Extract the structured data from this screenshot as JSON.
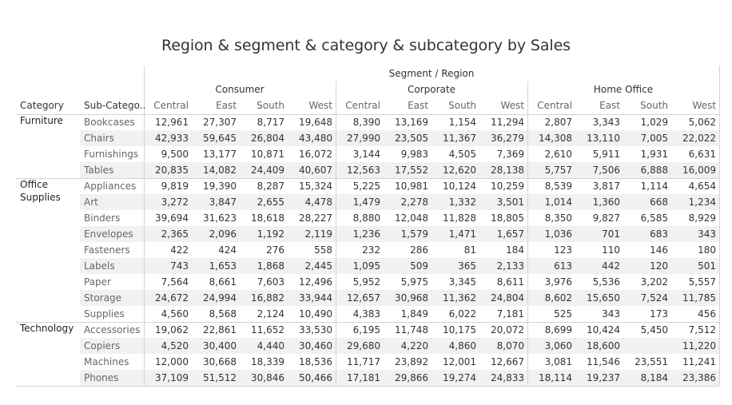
{
  "chart_data": {
    "type": "table",
    "title": "Region & segment & category & subcategory by Sales",
    "column_header_title": "Segment / Region",
    "row_header_labels": [
      "Category",
      "Sub-Catego.."
    ],
    "segments": [
      "Consumer",
      "Corporate",
      "Home Office"
    ],
    "regions": [
      "Central",
      "East",
      "South",
      "West"
    ],
    "categories": [
      {
        "name": "Furniture",
        "subcategories": [
          {
            "name": "Bookcases",
            "values": [
              "12,961",
              "27,307",
              "8,717",
              "19,648",
              "8,390",
              "13,169",
              "1,154",
              "11,294",
              "2,807",
              "3,343",
              "1,029",
              "5,062"
            ]
          },
          {
            "name": "Chairs",
            "values": [
              "42,933",
              "59,645",
              "26,804",
              "43,480",
              "27,990",
              "23,505",
              "11,367",
              "36,279",
              "14,308",
              "13,110",
              "7,005",
              "22,022"
            ]
          },
          {
            "name": "Furnishings",
            "values": [
              "9,500",
              "13,177",
              "10,871",
              "16,072",
              "3,144",
              "9,983",
              "4,505",
              "7,369",
              "2,610",
              "5,911",
              "1,931",
              "6,631"
            ]
          },
          {
            "name": "Tables",
            "values": [
              "20,835",
              "14,082",
              "24,409",
              "40,607",
              "12,563",
              "17,552",
              "12,620",
              "28,138",
              "5,757",
              "7,506",
              "6,888",
              "16,009"
            ]
          }
        ]
      },
      {
        "name": "Office Supplies",
        "subcategories": [
          {
            "name": "Appliances",
            "values": [
              "9,819",
              "19,390",
              "8,287",
              "15,324",
              "5,225",
              "10,981",
              "10,124",
              "10,259",
              "8,539",
              "3,817",
              "1,114",
              "4,654"
            ]
          },
          {
            "name": "Art",
            "values": [
              "3,272",
              "3,847",
              "2,655",
              "4,478",
              "1,479",
              "2,278",
              "1,332",
              "3,501",
              "1,014",
              "1,360",
              "668",
              "1,234"
            ]
          },
          {
            "name": "Binders",
            "values": [
              "39,694",
              "31,623",
              "18,618",
              "28,227",
              "8,880",
              "12,048",
              "11,828",
              "18,805",
              "8,350",
              "9,827",
              "6,585",
              "8,929"
            ]
          },
          {
            "name": "Envelopes",
            "values": [
              "2,365",
              "2,096",
              "1,192",
              "2,119",
              "1,236",
              "1,579",
              "1,471",
              "1,657",
              "1,036",
              "701",
              "683",
              "343"
            ]
          },
          {
            "name": "Fasteners",
            "values": [
              "422",
              "424",
              "276",
              "558",
              "232",
              "286",
              "81",
              "184",
              "123",
              "110",
              "146",
              "180"
            ]
          },
          {
            "name": "Labels",
            "values": [
              "743",
              "1,653",
              "1,868",
              "2,445",
              "1,095",
              "509",
              "365",
              "2,133",
              "613",
              "442",
              "120",
              "501"
            ]
          },
          {
            "name": "Paper",
            "values": [
              "7,564",
              "8,661",
              "7,603",
              "12,496",
              "5,952",
              "5,975",
              "3,345",
              "8,611",
              "3,976",
              "5,536",
              "3,202",
              "5,557"
            ]
          },
          {
            "name": "Storage",
            "values": [
              "24,672",
              "24,994",
              "16,882",
              "33,944",
              "12,657",
              "30,968",
              "11,362",
              "24,804",
              "8,602",
              "15,650",
              "7,524",
              "11,785"
            ]
          },
          {
            "name": "Supplies",
            "values": [
              "4,560",
              "8,568",
              "2,124",
              "10,490",
              "4,383",
              "1,849",
              "6,022",
              "7,181",
              "525",
              "343",
              "173",
              "456"
            ]
          }
        ]
      },
      {
        "name": "Technology",
        "subcategories": [
          {
            "name": "Accessories",
            "values": [
              "19,062",
              "22,861",
              "11,652",
              "33,530",
              "6,195",
              "11,748",
              "10,175",
              "20,072",
              "8,699",
              "10,424",
              "5,450",
              "7,512"
            ]
          },
          {
            "name": "Copiers",
            "values": [
              "4,520",
              "30,400",
              "4,440",
              "30,460",
              "29,680",
              "4,220",
              "4,860",
              "8,070",
              "3,060",
              "18,600",
              "",
              "11,220"
            ]
          },
          {
            "name": "Machines",
            "values": [
              "12,000",
              "30,668",
              "18,339",
              "18,536",
              "11,717",
              "23,892",
              "12,001",
              "12,667",
              "3,081",
              "11,546",
              "23,551",
              "11,241"
            ]
          },
          {
            "name": "Phones",
            "values": [
              "37,109",
              "51,512",
              "30,846",
              "50,466",
              "17,181",
              "29,866",
              "19,274",
              "24,833",
              "18,114",
              "19,237",
              "8,184",
              "23,386"
            ]
          }
        ]
      }
    ]
  }
}
